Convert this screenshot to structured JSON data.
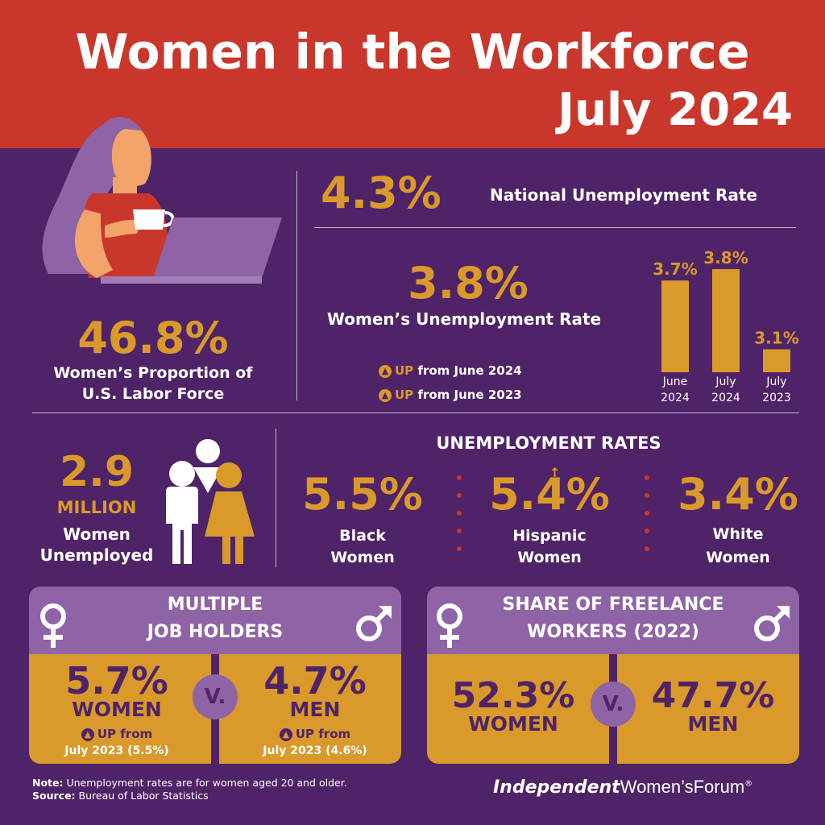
{
  "header": {
    "title_line1": "Women in the Workforce",
    "title_line2": "July 2024"
  },
  "colors": {
    "red": "#c9372c",
    "purple": "#4f2367",
    "gold": "#d99a2b",
    "lavender": "#8f64a6"
  },
  "labor_force": {
    "value": "46.8%",
    "label_line1": "Women’s Proportion of",
    "label_line2": "U.S. Labor Force"
  },
  "national": {
    "value": "4.3%",
    "label": "National Unemployment Rate"
  },
  "womens_rate": {
    "value": "3.8%",
    "label": "Women’s Unemployment Rate",
    "changes": [
      {
        "word": "UP",
        "text": "from June 2024"
      },
      {
        "word": "UP",
        "text": "from June 2023"
      }
    ]
  },
  "chart_data": {
    "type": "bar",
    "categories": [
      "June 2024",
      "July 2024",
      "July 2023"
    ],
    "category_lines": [
      [
        "June",
        "2024"
      ],
      [
        "July",
        "2024"
      ],
      [
        "July",
        "2023"
      ]
    ],
    "values": [
      3.7,
      3.8,
      3.1
    ],
    "value_labels": [
      "3.7%",
      "3.8%",
      "3.1%"
    ],
    "ylim": [
      2.9,
      3.8
    ],
    "grid": false,
    "title": "",
    "xlabel": "",
    "ylabel": ""
  },
  "unemployed_women": {
    "value": "2.9",
    "unit": "MILLION",
    "label_line1": "Women",
    "label_line2": "Unemployed"
  },
  "unemployment_rates": {
    "heading": "UNEMPLOYMENT RATES",
    "groups": [
      {
        "value": "5.5%",
        "line1": "Black",
        "line2": "Women"
      },
      {
        "value": "5.4%",
        "line1": "Hispanic",
        "line2": "Women"
      },
      {
        "value": "3.4%",
        "line1": "White",
        "line2": "Women"
      }
    ]
  },
  "multiple_jobs": {
    "heading_line1": "MULTIPLE",
    "heading_line2": "JOB HOLDERS",
    "women": {
      "value": "5.7%",
      "label": "WOMEN",
      "up_word": "UP",
      "up_text": "from",
      "from_line": "July 2023 (5.5%)"
    },
    "men": {
      "value": "4.7%",
      "label": "MEN",
      "up_word": "UP",
      "up_text": "from",
      "from_line": "July 2023 (4.6%)"
    },
    "versus": "V."
  },
  "freelance": {
    "heading_line1": "SHARE OF FREELANCE",
    "heading_line2": "WORKERS (2022)",
    "women": {
      "value": "52.3%",
      "label": "WOMEN"
    },
    "men": {
      "value": "47.7%",
      "label": "MEN"
    },
    "versus": "V."
  },
  "footer": {
    "note_label": "Note:",
    "note_text": " Unemployment rates are for women aged 20 and older.",
    "source_label": "Source:",
    "source_text": " Bureau of Labor Statistics",
    "logo_part1": "Independent",
    "logo_part2": "Women’s",
    "logo_part3": "Forum",
    "logo_mark": "®"
  },
  "icons": [
    "woman-laptop-illustration",
    "people-group-icon",
    "female-symbol-icon",
    "male-symbol-icon",
    "up-arrow-icon"
  ]
}
